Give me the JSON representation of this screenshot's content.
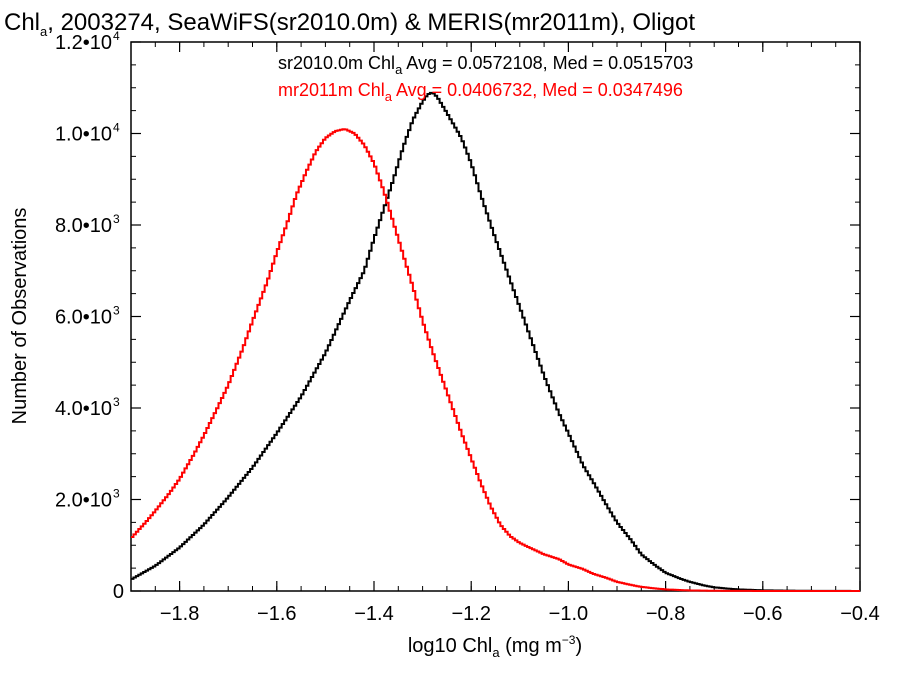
{
  "chart_data": {
    "type": "histogram",
    "title": {
      "prefix": "Chl",
      "subscript": "a",
      "suffix": ", 2003274, SeaWiFS(sr2010.0m) & MERIS(mr2011m), Oligot"
    },
    "xlabel": {
      "prefix": "log10 Chl",
      "subscript": "a",
      "middle": " (mg m",
      "superscript": "−3",
      "suffix": ")"
    },
    "ylabel": "Number of Observations",
    "xlim": [
      -1.9,
      -0.4
    ],
    "ylim": [
      0,
      12000
    ],
    "x_ticks": [
      {
        "value": -1.8,
        "label": "−1.8"
      },
      {
        "value": -1.6,
        "label": "−1.6"
      },
      {
        "value": -1.4,
        "label": "−1.4"
      },
      {
        "value": -1.2,
        "label": "−1.2"
      },
      {
        "value": -1.0,
        "label": "−1.0"
      },
      {
        "value": -0.8,
        "label": "−0.8"
      },
      {
        "value": -0.6,
        "label": "−0.6"
      },
      {
        "value": -0.4,
        "label": "−0.4"
      }
    ],
    "y_ticks": [
      {
        "value": 0,
        "label": "0",
        "exp": ""
      },
      {
        "value": 2000,
        "label": "2.0•10",
        "exp": "3"
      },
      {
        "value": 4000,
        "label": "4.0•10",
        "exp": "3"
      },
      {
        "value": 6000,
        "label": "6.0•10",
        "exp": "3"
      },
      {
        "value": 8000,
        "label": "8.0•10",
        "exp": "3"
      },
      {
        "value": 10000,
        "label": "1.0•10",
        "exp": "4"
      },
      {
        "value": 12000,
        "label": "1.2•10",
        "exp": "4"
      }
    ],
    "series": [
      {
        "name": "sr2010.0m",
        "color": "#000000",
        "label": {
          "prefix": "sr2010.0m Chl",
          "subscript": "a",
          "suffix": " Avg = 0.0572108, Med = 0.0515703"
        },
        "points": [
          [
            -1.9,
            250
          ],
          [
            -1.85,
            550
          ],
          [
            -1.8,
            950
          ],
          [
            -1.75,
            1450
          ],
          [
            -1.7,
            2050
          ],
          [
            -1.65,
            2700
          ],
          [
            -1.6,
            3450
          ],
          [
            -1.55,
            4250
          ],
          [
            -1.5,
            5200
          ],
          [
            -1.45,
            6350
          ],
          [
            -1.42,
            7000
          ],
          [
            -1.4,
            7700
          ],
          [
            -1.38,
            8350
          ],
          [
            -1.36,
            9000
          ],
          [
            -1.34,
            9700
          ],
          [
            -1.32,
            10300
          ],
          [
            -1.3,
            10700
          ],
          [
            -1.29,
            10850
          ],
          [
            -1.28,
            10900
          ],
          [
            -1.27,
            10800
          ],
          [
            -1.25,
            10450
          ],
          [
            -1.22,
            9900
          ],
          [
            -1.2,
            9350
          ],
          [
            -1.18,
            8650
          ],
          [
            -1.15,
            7700
          ],
          [
            -1.12,
            6800
          ],
          [
            -1.1,
            6200
          ],
          [
            -1.07,
            5300
          ],
          [
            -1.05,
            4700
          ],
          [
            -1.02,
            3900
          ],
          [
            -1.0,
            3450
          ],
          [
            -0.97,
            2750
          ],
          [
            -0.95,
            2400
          ],
          [
            -0.92,
            1850
          ],
          [
            -0.9,
            1500
          ],
          [
            -0.87,
            1100
          ],
          [
            -0.85,
            800
          ],
          [
            -0.82,
            550
          ],
          [
            -0.8,
            400
          ],
          [
            -0.77,
            270
          ],
          [
            -0.75,
            200
          ],
          [
            -0.72,
            120
          ],
          [
            -0.7,
            80
          ],
          [
            -0.67,
            50
          ],
          [
            -0.65,
            35
          ],
          [
            -0.6,
            15
          ],
          [
            -0.55,
            8
          ],
          [
            -0.5,
            4
          ],
          [
            -0.45,
            2
          ],
          [
            -0.4,
            1
          ]
        ]
      },
      {
        "name": "mr2011m",
        "color": "#ff0000",
        "label": {
          "prefix": "mr2011m Chl",
          "subscript": "a",
          "suffix": " Avg = 0.0406732, Med = 0.0347496"
        },
        "points": [
          [
            -1.9,
            1150
          ],
          [
            -1.87,
            1500
          ],
          [
            -1.85,
            1750
          ],
          [
            -1.82,
            2150
          ],
          [
            -1.8,
            2450
          ],
          [
            -1.77,
            3000
          ],
          [
            -1.75,
            3400
          ],
          [
            -1.72,
            4050
          ],
          [
            -1.7,
            4500
          ],
          [
            -1.67,
            5300
          ],
          [
            -1.65,
            5900
          ],
          [
            -1.62,
            6750
          ],
          [
            -1.6,
            7400
          ],
          [
            -1.58,
            8000
          ],
          [
            -1.56,
            8650
          ],
          [
            -1.54,
            9150
          ],
          [
            -1.52,
            9600
          ],
          [
            -1.5,
            9900
          ],
          [
            -1.48,
            10050
          ],
          [
            -1.46,
            10100
          ],
          [
            -1.44,
            10000
          ],
          [
            -1.42,
            9750
          ],
          [
            -1.4,
            9350
          ],
          [
            -1.38,
            8750
          ],
          [
            -1.36,
            8050
          ],
          [
            -1.34,
            7350
          ],
          [
            -1.32,
            6650
          ],
          [
            -1.3,
            5900
          ],
          [
            -1.28,
            5250
          ],
          [
            -1.26,
            4650
          ],
          [
            -1.24,
            4050
          ],
          [
            -1.22,
            3450
          ],
          [
            -1.2,
            2900
          ],
          [
            -1.18,
            2350
          ],
          [
            -1.16,
            1850
          ],
          [
            -1.14,
            1450
          ],
          [
            -1.12,
            1200
          ],
          [
            -1.1,
            1050
          ],
          [
            -1.07,
            900
          ],
          [
            -1.05,
            800
          ],
          [
            -1.02,
            700
          ],
          [
            -1.0,
            580
          ],
          [
            -0.97,
            480
          ],
          [
            -0.95,
            380
          ],
          [
            -0.92,
            280
          ],
          [
            -0.9,
            200
          ],
          [
            -0.87,
            130
          ],
          [
            -0.85,
            90
          ],
          [
            -0.82,
            55
          ],
          [
            -0.8,
            35
          ],
          [
            -0.77,
            20
          ],
          [
            -0.75,
            12
          ],
          [
            -0.7,
            5
          ],
          [
            -0.65,
            2
          ],
          [
            -0.6,
            1
          ],
          [
            -0.55,
            0
          ],
          [
            -0.5,
            0
          ],
          [
            -0.45,
            0
          ],
          [
            -0.4,
            0
          ]
        ]
      }
    ]
  }
}
